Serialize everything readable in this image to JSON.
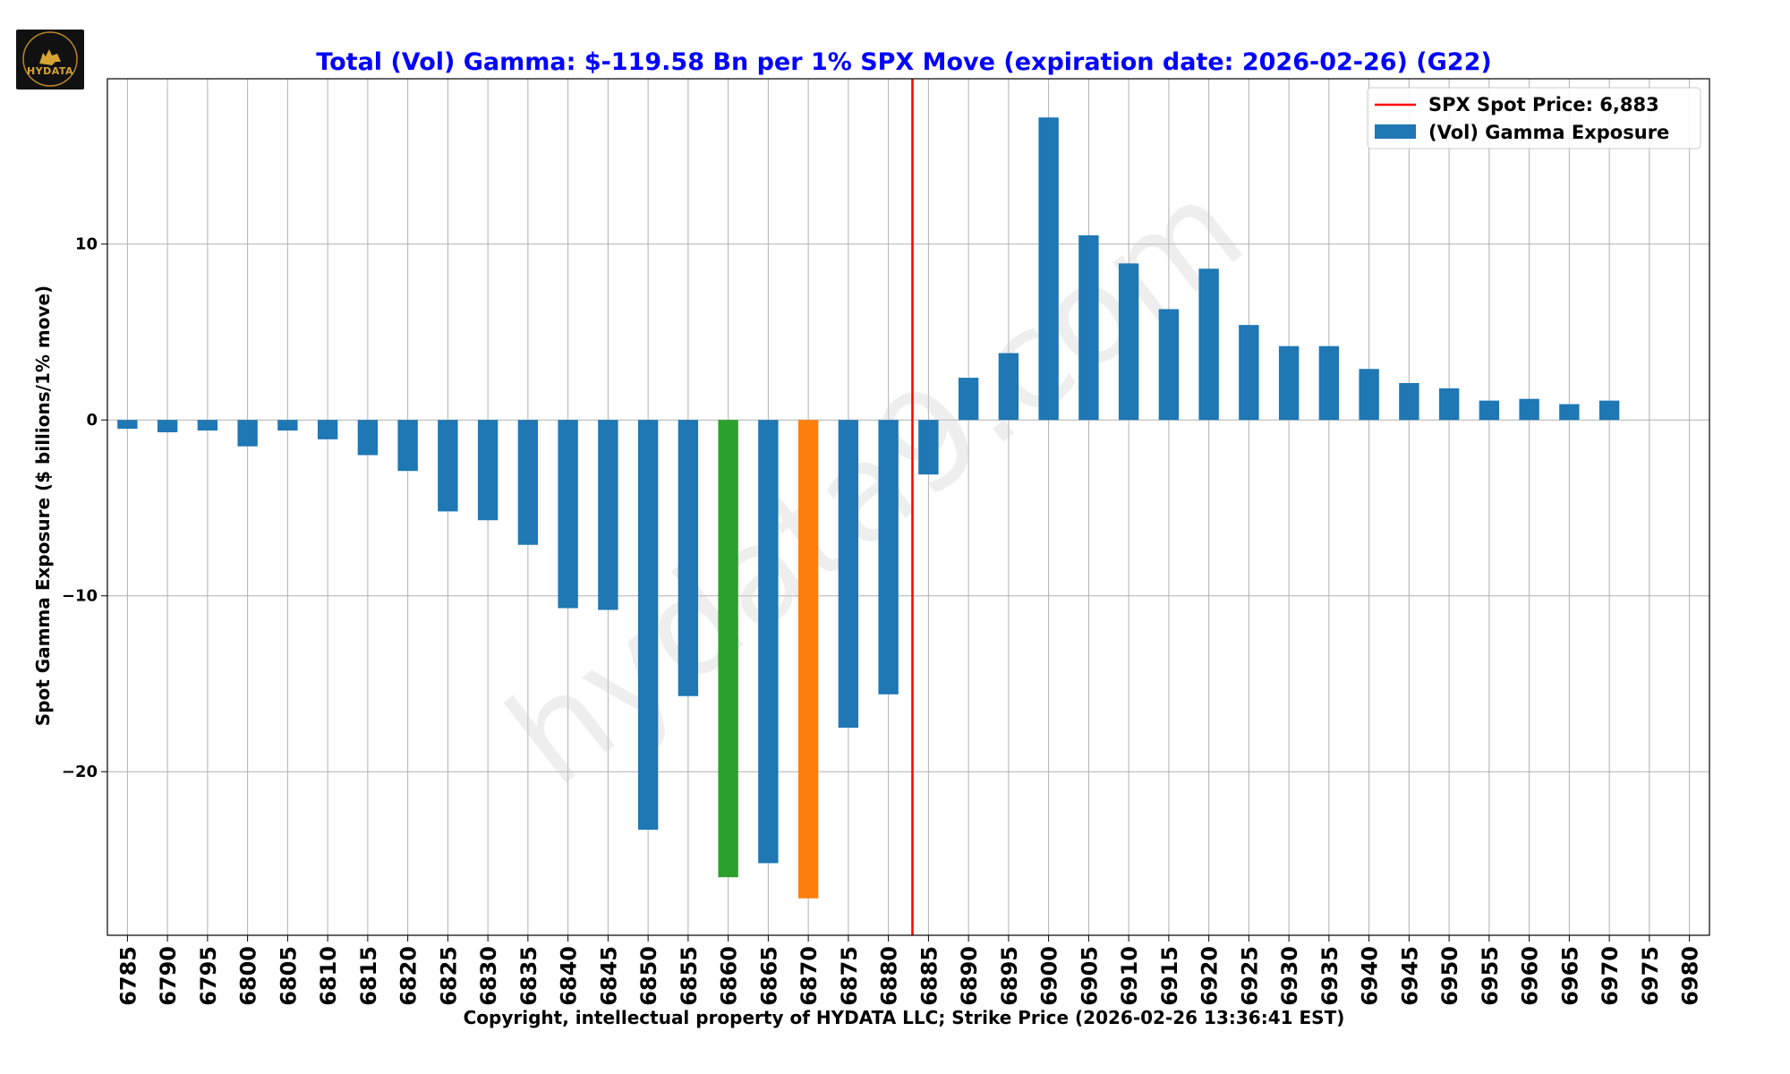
{
  "logo": {
    "text": "HYDATA"
  },
  "watermark": "hydata9.com",
  "chart_data": {
    "type": "bar",
    "title": "Total (Vol) Gamma: $-119.58 Bn per 1% SPX Move (expiration date: 2026-02-26) (G22)",
    "xlabel": "Copyright, intellectual property of HYDATA LLC; Strike Price (2026-02-26 13:36:41 EST)",
    "ylabel": "Spot Gamma Exposure ($ billions/1% move)",
    "ylim": [
      -29.3,
      19.4
    ],
    "yticks": [
      -20,
      -10,
      0,
      10
    ],
    "ytick_labels": [
      "−20",
      "−10",
      "0",
      "10"
    ],
    "grid": true,
    "legend_position": "top-right",
    "categories": [
      "6785",
      "6790",
      "6795",
      "6800",
      "6805",
      "6810",
      "6815",
      "6820",
      "6825",
      "6830",
      "6835",
      "6840",
      "6845",
      "6850",
      "6855",
      "6860",
      "6865",
      "6870",
      "6875",
      "6880",
      "6885",
      "6890",
      "6895",
      "6900",
      "6905",
      "6910",
      "6915",
      "6920",
      "6925",
      "6930",
      "6935",
      "6940",
      "6945",
      "6950",
      "6955",
      "6960",
      "6965",
      "6970",
      "6975",
      "6980"
    ],
    "values": [
      -0.5,
      -0.7,
      -0.6,
      -1.5,
      -0.6,
      -1.1,
      -2.0,
      -2.9,
      -5.2,
      -5.7,
      -7.1,
      -10.7,
      -10.8,
      -23.3,
      -15.7,
      -26.0,
      -25.2,
      -27.2,
      -17.5,
      -15.6,
      -3.1,
      2.4,
      3.8,
      17.2,
      10.5,
      8.9,
      6.3,
      8.6,
      5.4,
      4.2,
      4.2,
      2.9,
      2.1,
      1.8,
      1.1,
      1.2,
      0.9,
      1.1,
      0,
      0
    ],
    "bar_colors": [
      "#1f77b4",
      "#1f77b4",
      "#1f77b4",
      "#1f77b4",
      "#1f77b4",
      "#1f77b4",
      "#1f77b4",
      "#1f77b4",
      "#1f77b4",
      "#1f77b4",
      "#1f77b4",
      "#1f77b4",
      "#1f77b4",
      "#1f77b4",
      "#1f77b4",
      "#2ca02c",
      "#1f77b4",
      "#ff7f0e",
      "#1f77b4",
      "#1f77b4",
      "#1f77b4",
      "#1f77b4",
      "#1f77b4",
      "#1f77b4",
      "#1f77b4",
      "#1f77b4",
      "#1f77b4",
      "#1f77b4",
      "#1f77b4",
      "#1f77b4",
      "#1f77b4",
      "#1f77b4",
      "#1f77b4",
      "#1f77b4",
      "#1f77b4",
      "#1f77b4",
      "#1f77b4",
      "#1f77b4",
      "#1f77b4",
      "#1f77b4"
    ],
    "spot": {
      "label": "SPX Spot Price: 6,883",
      "value": 6883,
      "color": "#ff0000"
    },
    "series": [
      {
        "name": "(Vol) Gamma Exposure",
        "color": "#1f77b4"
      }
    ],
    "title_color": "#0000ff"
  }
}
